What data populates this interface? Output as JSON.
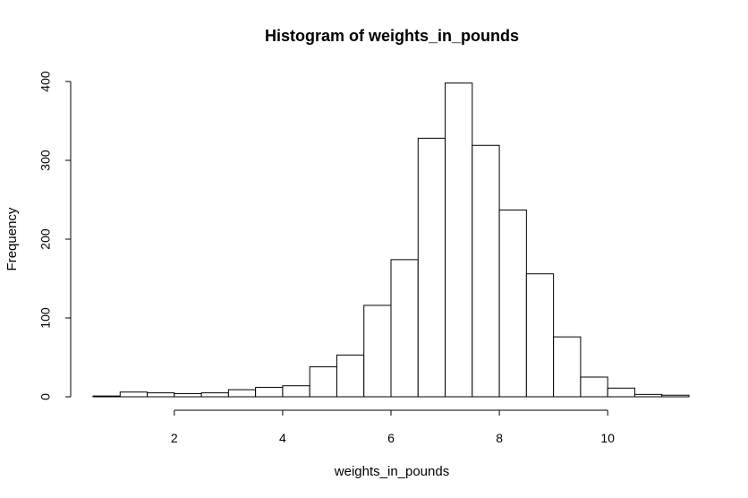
{
  "chart_data": {
    "type": "bar",
    "title": "Histogram of weights_in_pounds",
    "xlabel": "weights_in_pounds",
    "ylabel": "Frequency",
    "bin_width": 0.5,
    "bins": [
      {
        "start": 0.5,
        "end": 1.0,
        "count": 1
      },
      {
        "start": 1.0,
        "end": 1.5,
        "count": 6
      },
      {
        "start": 1.5,
        "end": 2.0,
        "count": 5
      },
      {
        "start": 2.0,
        "end": 2.5,
        "count": 4
      },
      {
        "start": 2.5,
        "end": 3.0,
        "count": 5
      },
      {
        "start": 3.0,
        "end": 3.5,
        "count": 9
      },
      {
        "start": 3.5,
        "end": 4.0,
        "count": 12
      },
      {
        "start": 4.0,
        "end": 4.5,
        "count": 14
      },
      {
        "start": 4.5,
        "end": 5.0,
        "count": 38
      },
      {
        "start": 5.0,
        "end": 5.5,
        "count": 53
      },
      {
        "start": 5.5,
        "end": 6.0,
        "count": 116
      },
      {
        "start": 6.0,
        "end": 6.5,
        "count": 174
      },
      {
        "start": 6.5,
        "end": 7.0,
        "count": 328
      },
      {
        "start": 7.0,
        "end": 7.5,
        "count": 398
      },
      {
        "start": 7.5,
        "end": 8.0,
        "count": 319
      },
      {
        "start": 8.0,
        "end": 8.5,
        "count": 237
      },
      {
        "start": 8.5,
        "end": 9.0,
        "count": 156
      },
      {
        "start": 9.0,
        "end": 9.5,
        "count": 76
      },
      {
        "start": 9.5,
        "end": 10.0,
        "count": 25
      },
      {
        "start": 10.0,
        "end": 10.5,
        "count": 11
      },
      {
        "start": 10.5,
        "end": 11.0,
        "count": 3
      },
      {
        "start": 11.0,
        "end": 11.5,
        "count": 2
      }
    ],
    "xlim": [
      0.5,
      11.5
    ],
    "ylim": [
      0,
      400
    ],
    "x_ticks": [
      2,
      4,
      6,
      8,
      10
    ],
    "y_ticks": [
      0,
      100,
      200,
      300,
      400
    ],
    "grid": false,
    "legend": "none",
    "colors": {
      "bar_fill": "#ffffff",
      "bar_stroke": "#000000",
      "axis": "#000000",
      "text": "#000000"
    }
  }
}
